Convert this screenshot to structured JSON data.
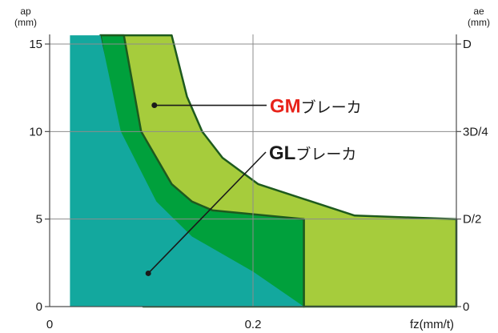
{
  "chart_data": {
    "type": "area",
    "title": "",
    "x_axis": {
      "label": "fz(mm/t)",
      "ticks": [
        {
          "value": 0,
          "label": "0"
        },
        {
          "value": 0.2,
          "label": "0.2"
        }
      ],
      "range": [
        0,
        0.4
      ]
    },
    "y_axis_left": {
      "label": "ap",
      "unit": "(mm)",
      "ticks": [
        {
          "value": 0,
          "label": "0"
        },
        {
          "value": 5,
          "label": "5"
        },
        {
          "value": 10,
          "label": "10"
        },
        {
          "value": 15,
          "label": "15"
        }
      ],
      "range": [
        0,
        15
      ]
    },
    "y_axis_right": {
      "label": "ae",
      "unit": "(mm)",
      "ticks": [
        {
          "value": 0,
          "label": "0"
        },
        {
          "value": 5,
          "label": "D/2"
        },
        {
          "value": 10,
          "label": "3D/4"
        },
        {
          "value": 15,
          "label": "D"
        }
      ]
    },
    "grid": true,
    "regions": [
      {
        "id": "gm-breaker",
        "color": "#a6cc3c",
        "outline": "#1e5a1e",
        "points": [
          [
            0.05,
            15.5
          ],
          [
            0.12,
            15.5
          ],
          [
            0.135,
            12.0
          ],
          [
            0.15,
            10.0
          ],
          [
            0.17,
            8.5
          ],
          [
            0.205,
            7.0
          ],
          [
            0.3,
            5.2
          ],
          [
            0.4,
            5.0
          ],
          [
            0.4,
            0
          ],
          [
            0.25,
            0
          ],
          [
            0.25,
            5.0
          ],
          [
            0.14,
            5.0
          ],
          [
            0.105,
            5.0
          ]
        ]
      },
      {
        "id": "gl-breaker",
        "color": "#00a03c",
        "outline": "#1e5a1e",
        "points": [
          [
            0.05,
            15.5
          ],
          [
            0.073,
            15.5
          ],
          [
            0.09,
            10.0
          ],
          [
            0.12,
            7.0
          ],
          [
            0.14,
            6.0
          ],
          [
            0.16,
            5.5
          ],
          [
            0.25,
            5.0
          ],
          [
            0.25,
            0
          ],
          [
            0.092,
            0
          ]
        ]
      },
      {
        "id": "base-region",
        "color": "#13a89e",
        "outline": "none",
        "points": [
          [
            0.02,
            15.5
          ],
          [
            0.05,
            15.5
          ],
          [
            0.07,
            10.0
          ],
          [
            0.105,
            6.0
          ],
          [
            0.14,
            4.0
          ],
          [
            0.2,
            2.0
          ],
          [
            0.25,
            0
          ],
          [
            0.02,
            0
          ]
        ]
      }
    ],
    "annotations": [
      {
        "id": "gm",
        "strong": "GM",
        "strong_color": "#e8231a",
        "text": "ブレーカ",
        "anchor": [
          0.103,
          11.5
        ]
      },
      {
        "id": "gl",
        "strong": "GL",
        "strong_color": "#1a1a1a",
        "text": "ブレーカ",
        "anchor": [
          0.097,
          1.9
        ]
      }
    ]
  }
}
